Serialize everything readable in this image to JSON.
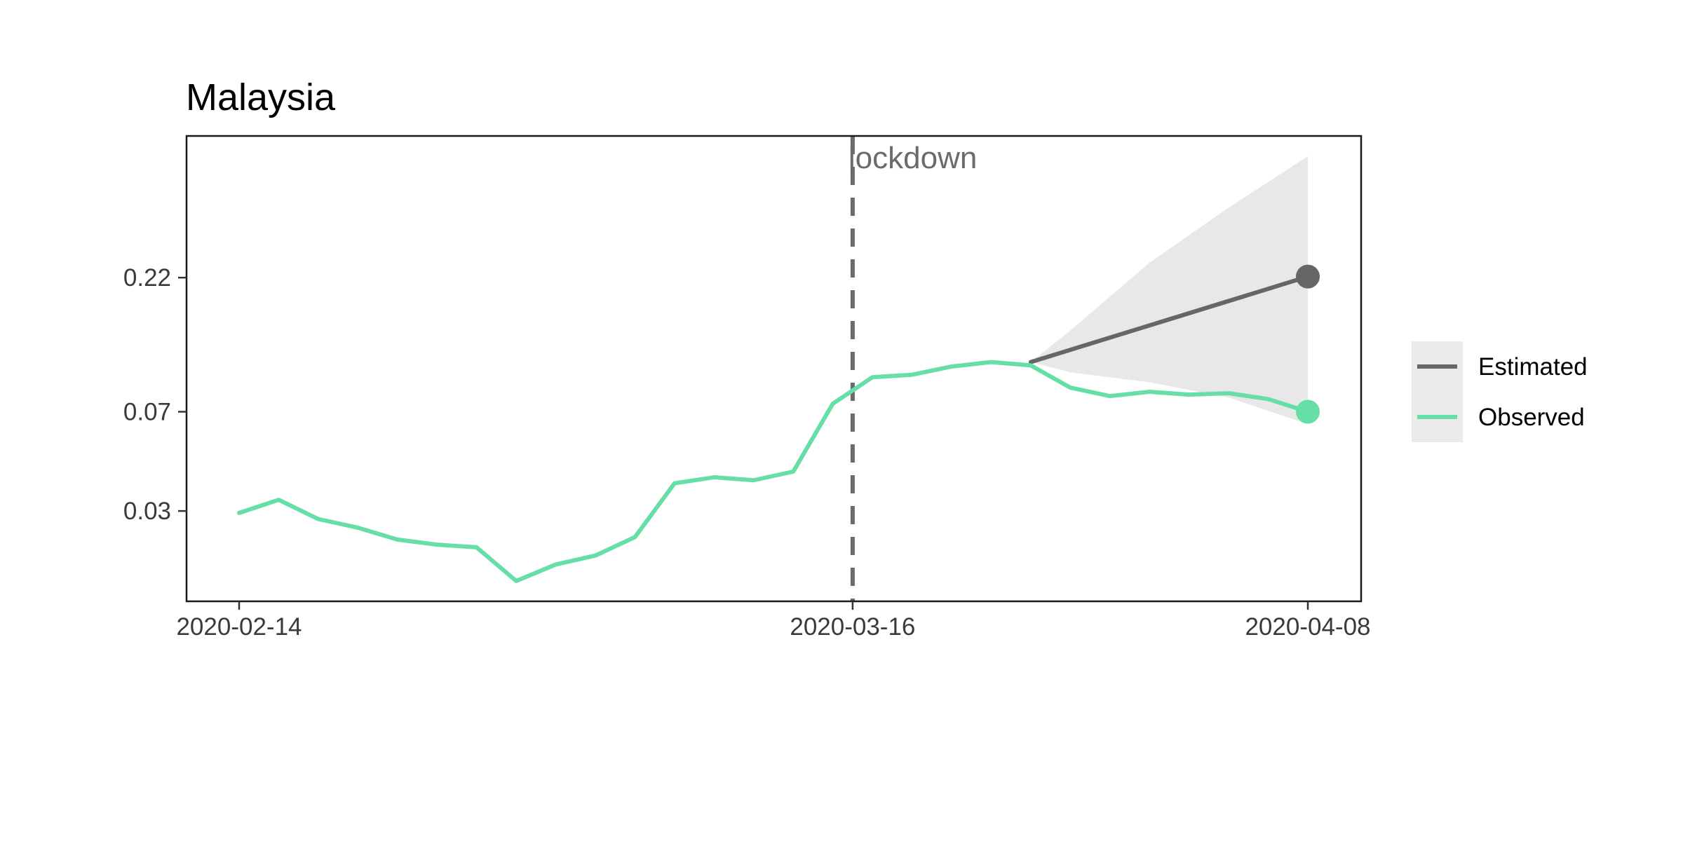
{
  "chart_data": {
    "type": "line",
    "title": "Malaysia",
    "xlabel": "",
    "ylabel": "",
    "y_scale": "log",
    "ylim": [
      0.0165,
      0.62
    ],
    "x_ticks": [
      "2020-02-14",
      "2020-03-16",
      "2020-04-08"
    ],
    "y_ticks": [
      "0.03",
      "0.07",
      "0.22"
    ],
    "grid": false,
    "legend_position": "right",
    "annotations": [
      {
        "type": "vline",
        "x": "2020-03-16",
        "label": "lockdown",
        "style": "dashed",
        "color": "#6b6b6b"
      }
    ],
    "series": [
      {
        "name": "Observed",
        "color": "#66dfa6",
        "x": [
          "2020-02-14",
          "2020-02-16",
          "2020-02-18",
          "2020-02-20",
          "2020-02-22",
          "2020-02-24",
          "2020-02-26",
          "2020-02-28",
          "2020-03-01",
          "2020-03-03",
          "2020-03-05",
          "2020-03-07",
          "2020-03-09",
          "2020-03-11",
          "2020-03-13",
          "2020-03-15",
          "2020-03-17",
          "2020-03-19",
          "2020-03-21",
          "2020-03-23",
          "2020-03-25",
          "2020-03-27",
          "2020-03-29",
          "2020-03-31",
          "2020-04-02",
          "2020-04-04",
          "2020-04-06",
          "2020-04-08"
        ],
        "values": [
          0.0295,
          0.033,
          0.028,
          0.026,
          0.0235,
          0.0225,
          0.022,
          0.0165,
          0.019,
          0.0205,
          0.024,
          0.038,
          0.04,
          0.039,
          0.042,
          0.075,
          0.094,
          0.096,
          0.103,
          0.107,
          0.104,
          0.086,
          0.08,
          0.083,
          0.081,
          0.082,
          0.078,
          0.07
        ],
        "end_point": 0.07
      },
      {
        "name": "Estimated",
        "color": "#666666",
        "x": [
          "2020-03-25",
          "2020-04-08"
        ],
        "values": [
          0.107,
          0.222
        ],
        "end_point": 0.222,
        "ribbon": {
          "color": "#e8e8e8",
          "x": [
            "2020-03-25",
            "2020-03-27",
            "2020-03-31",
            "2020-04-04",
            "2020-04-08"
          ],
          "lower": [
            0.107,
            0.098,
            0.09,
            0.079,
            0.063
          ],
          "upper": [
            0.107,
            0.14,
            0.25,
            0.4,
            0.62
          ]
        }
      }
    ]
  }
}
